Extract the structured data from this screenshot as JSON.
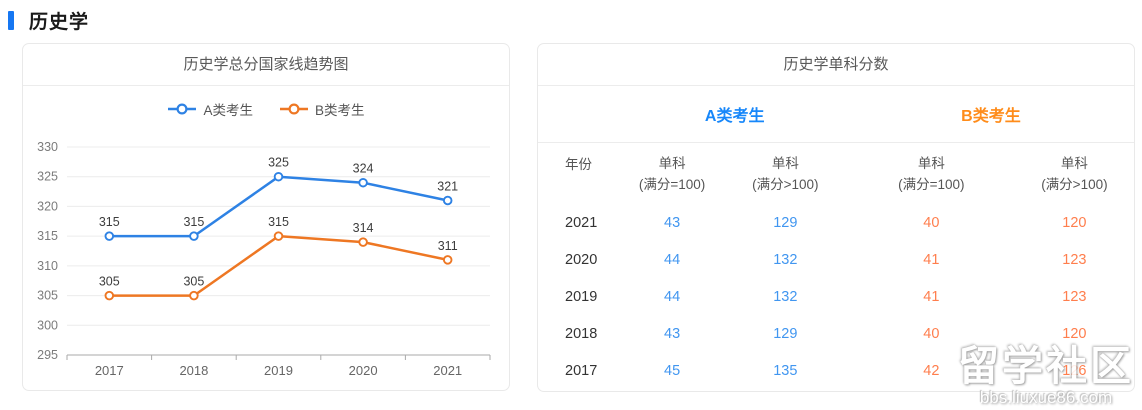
{
  "page": {
    "title": "历史学"
  },
  "theme": {
    "accent_blue": "#1677f2",
    "series_a_color": "#2e82e4",
    "series_b_color": "#ee7723",
    "table_a_value_color": "#4196f0",
    "table_b_value_color": "#ff7e4d",
    "group_a_color": "#1787fa",
    "group_b_color": "#ff8c1a"
  },
  "chart_card": {
    "title": "历史学总分国家线趋势图"
  },
  "chart_data": {
    "type": "line",
    "title": "历史学总分国家线趋势图",
    "categories": [
      "2017",
      "2018",
      "2019",
      "2020",
      "2021"
    ],
    "series": [
      {
        "name": "A类考生",
        "color": "#2e82e4",
        "values": [
          315,
          315,
          325,
          324,
          321
        ]
      },
      {
        "name": "B类考生",
        "color": "#ee7723",
        "values": [
          305,
          305,
          315,
          314,
          311
        ]
      }
    ],
    "ylim": [
      295,
      330
    ],
    "ytick_step": 5,
    "grid": true,
    "legend_position": "top",
    "marker": "hollow-circle",
    "xlabel": "",
    "ylabel": ""
  },
  "table_card": {
    "title": "历史学单科分数",
    "group_headers": [
      {
        "label": "A类考生"
      },
      {
        "label": "B类考生"
      }
    ],
    "columns": [
      {
        "line1": "年份",
        "line2": ""
      },
      {
        "line1": "单科",
        "line2": "(满分=100)"
      },
      {
        "line1": "单科",
        "line2": "(满分>100)"
      },
      {
        "line1": "单科",
        "line2": "(满分=100)"
      },
      {
        "line1": "单科",
        "line2": "(满分>100)"
      }
    ],
    "rows": [
      [
        "2021",
        "43",
        "129",
        "40",
        "120"
      ],
      [
        "2020",
        "44",
        "132",
        "41",
        "123"
      ],
      [
        "2019",
        "44",
        "132",
        "41",
        "123"
      ],
      [
        "2018",
        "43",
        "129",
        "40",
        "120"
      ],
      [
        "2017",
        "45",
        "135",
        "42",
        "126"
      ]
    ]
  },
  "watermark": {
    "line1": "留学社区",
    "line2": "bbs.liuxue86.com"
  }
}
